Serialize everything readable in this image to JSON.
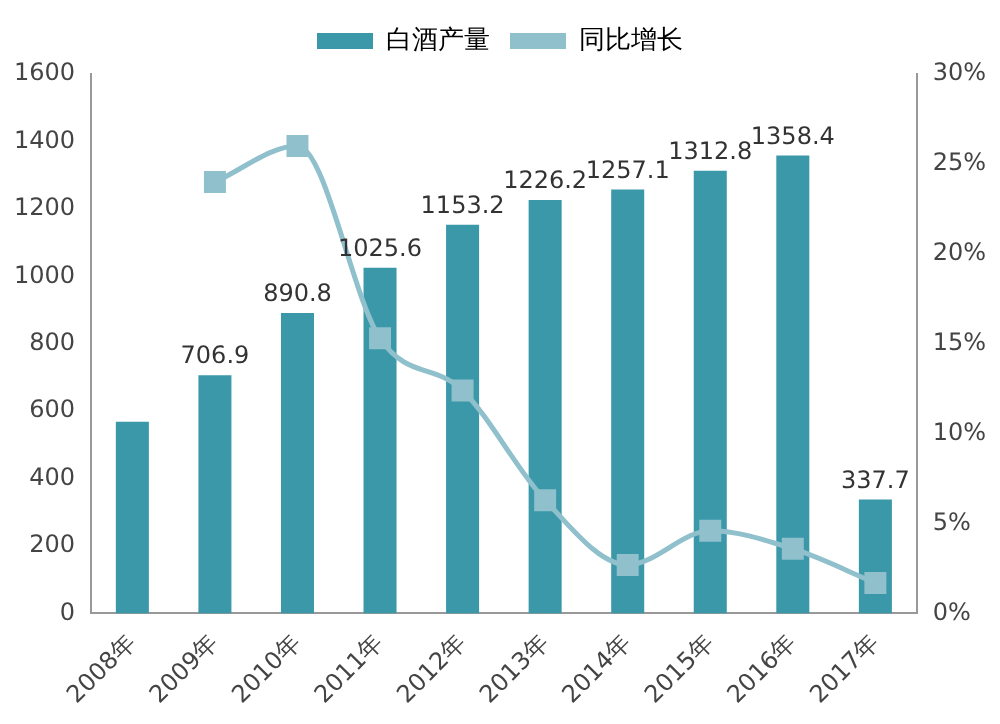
{
  "chart_data": {
    "type": "bar",
    "categories": [
      "2008年",
      "2009年",
      "2010年",
      "2011年",
      "2012年",
      "2013年",
      "2014年",
      "2015年",
      "2016年",
      "2017年"
    ],
    "series": [
      {
        "name": "白酒产量",
        "color": "#3a98a9",
        "values": [
          569,
          706.9,
          890.8,
          1025.6,
          1153.2,
          1226.2,
          1257.1,
          1312.8,
          1358.4,
          337.7
        ],
        "value_labels": [
          null,
          "706.9",
          "890.8",
          "1025.6",
          "1153.2",
          "1226.2",
          "1257.1",
          "1312.8",
          "1358.4",
          "337.7"
        ]
      },
      {
        "name": "同比增长",
        "type": "line",
        "axis": "y2",
        "color": "#8fc0cc",
        "marker": "square",
        "values": [
          null,
          24.0,
          26.0,
          15.3,
          12.4,
          6.3,
          2.7,
          4.6,
          3.6,
          1.7
        ]
      }
    ],
    "ylim": [
      0,
      1600
    ],
    "yticks": [
      0,
      200,
      400,
      600,
      800,
      1000,
      1200,
      1400,
      1600
    ],
    "y2lim": [
      0,
      30
    ],
    "y2ticks": [
      {
        "value": 0,
        "label": "0%"
      },
      {
        "value": 5,
        "label": "5%"
      },
      {
        "value": 10,
        "label": "10%"
      },
      {
        "value": 15,
        "label": "15%"
      },
      {
        "value": 20,
        "label": "20%"
      },
      {
        "value": 25,
        "label": "25%"
      },
      {
        "value": 30,
        "label": "30%"
      }
    ],
    "legend": "top",
    "grid": false
  }
}
